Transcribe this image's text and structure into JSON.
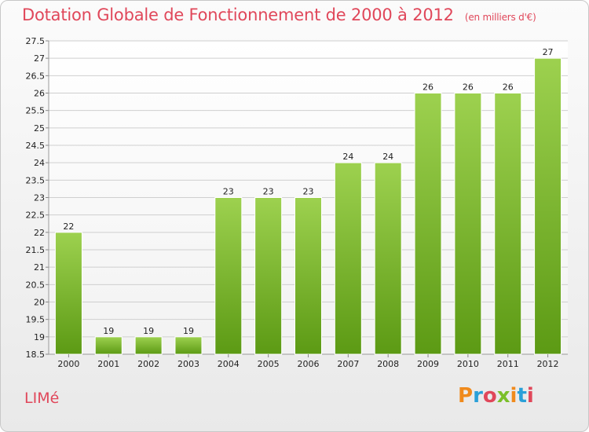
{
  "header": {
    "title": "Dotation Globale de Fonctionnement de 2000 à 2012",
    "subtitle": "(en milliers d'€)"
  },
  "footer": {
    "commune": "LIMé",
    "logo": "Proxiti"
  },
  "colors": {
    "title": "#e0475a",
    "bar_top": "#9dd14f",
    "bar_bottom": "#5c9a14",
    "grid": "#cfcfcf"
  },
  "chart_data": {
    "type": "bar",
    "title": "Dotation Globale de Fonctionnement de 2000 à 2012",
    "subtitle": "(en milliers d'€)",
    "xlabel": "",
    "ylabel": "",
    "categories": [
      "2000",
      "2001",
      "2002",
      "2003",
      "2004",
      "2005",
      "2006",
      "2007",
      "2008",
      "2009",
      "2010",
      "2011",
      "2012"
    ],
    "values": [
      22,
      19,
      19,
      19,
      23,
      23,
      23,
      24,
      24,
      26,
      26,
      26,
      27
    ],
    "data_labels": [
      "22",
      "19",
      "19",
      "19",
      "23",
      "23",
      "23",
      "24",
      "24",
      "26",
      "26",
      "26",
      "27"
    ],
    "ylim": [
      18.5,
      27.5
    ],
    "yticks": [
      "18.5",
      "19",
      "19.5",
      "20",
      "20.5",
      "21",
      "21.5",
      "22",
      "22.5",
      "23",
      "23.5",
      "24",
      "24.5",
      "25",
      "25.5",
      "26",
      "26.5",
      "27",
      "27.5"
    ],
    "grid": true,
    "legend": "none"
  }
}
